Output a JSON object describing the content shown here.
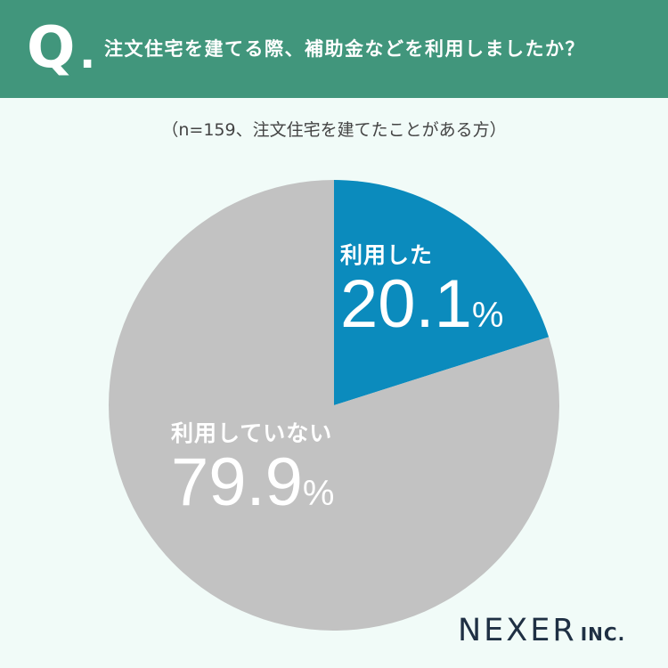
{
  "header": {
    "q_letter": "Q",
    "q_dot": ".",
    "question": "注文住宅を建てる際、補助金などを利用しましたか？"
  },
  "subtitle": "（n=159、注文住宅を建てたことがある方）",
  "chart_data": {
    "type": "pie",
    "slices": [
      {
        "label": "利用した",
        "value": 20.1,
        "value_text": "20.1",
        "unit": "%",
        "color": "#0b8bbd"
      },
      {
        "label": "利用していない",
        "value": 79.9,
        "value_text": "79.9",
        "unit": "%",
        "color": "#c2c2c2"
      }
    ],
    "start": "12 o'clock, clockwise"
  },
  "logo": {
    "main": "NEXER",
    "suffix": "INC."
  },
  "colors": {
    "header_bg": "#41967c",
    "page_bg": "#f1fbf8",
    "logo_text": "#1f3044"
  }
}
